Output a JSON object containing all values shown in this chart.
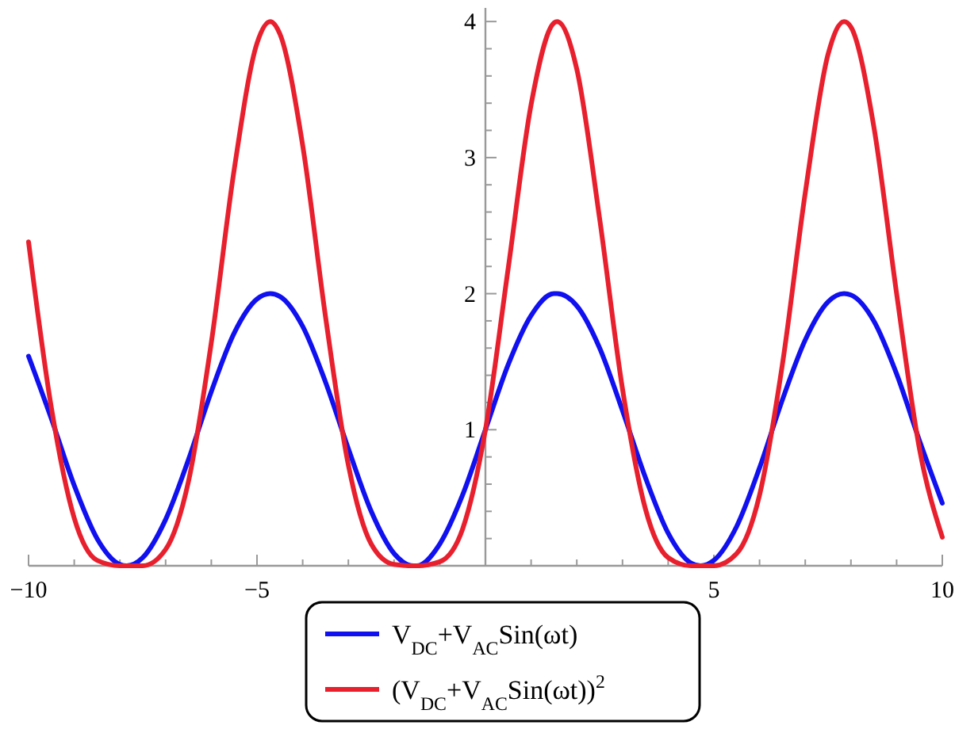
{
  "chart_data": {
    "type": "line",
    "xlim": [
      -10,
      10
    ],
    "ylim": [
      0,
      4.1
    ],
    "xticks": [
      -10,
      {
        "value": -9,
        "label": null
      },
      {
        "value": -8,
        "label": null
      },
      {
        "value": -7,
        "label": null
      },
      {
        "value": -6,
        "label": null
      },
      -5,
      {
        "value": -4,
        "label": null
      },
      {
        "value": -3,
        "label": null
      },
      {
        "value": -2,
        "label": null
      },
      {
        "value": -1,
        "label": null
      },
      {
        "value": 1,
        "label": null
      },
      {
        "value": 2,
        "label": null
      },
      {
        "value": 3,
        "label": null
      },
      {
        "value": 4,
        "label": null
      },
      5,
      {
        "value": 6,
        "label": null
      },
      {
        "value": 7,
        "label": null
      },
      {
        "value": 8,
        "label": null
      },
      {
        "value": 9,
        "label": null
      },
      10
    ],
    "yticks": [
      {
        "value": 0.2,
        "label": null
      },
      {
        "value": 0.4,
        "label": null
      },
      {
        "value": 0.6,
        "label": null
      },
      {
        "value": 0.8,
        "label": null
      },
      1,
      {
        "value": 1.2,
        "label": null
      },
      {
        "value": 1.4,
        "label": null
      },
      {
        "value": 1.6,
        "label": null
      },
      {
        "value": 1.8,
        "label": null
      },
      2,
      {
        "value": 2.2,
        "label": null
      },
      {
        "value": 2.4,
        "label": null
      },
      {
        "value": 2.6,
        "label": null
      },
      {
        "value": 2.8,
        "label": null
      },
      3,
      {
        "value": 3.2,
        "label": null
      },
      {
        "value": 3.4,
        "label": null
      },
      {
        "value": 3.6,
        "label": null
      },
      {
        "value": 3.8,
        "label": null
      },
      4
    ],
    "x": [
      -10,
      -9.5,
      -9,
      -8.5,
      -8,
      -7.85,
      -7.5,
      -7,
      -6.5,
      -6,
      -5.5,
      -5,
      -4.71,
      -4.5,
      -4,
      -3.5,
      -3,
      -2.5,
      -2,
      -1.57,
      -1.5,
      -1,
      -0.5,
      0,
      0.5,
      1,
      1.5,
      1.57,
      2,
      2.5,
      3,
      3.5,
      4,
      4.5,
      4.71,
      5,
      5.5,
      6,
      6.5,
      7,
      7.5,
      7.85,
      8,
      8.5,
      9,
      9.5,
      10
    ],
    "series": [
      {
        "name": "V$_{DC}$+V$_{AC}$Sin(ωt)",
        "color": "#1010f0",
        "values": [
          1.54,
          1.08,
          0.59,
          0.2,
          0.01,
          0,
          0.06,
          0.34,
          0.78,
          1.28,
          1.71,
          1.96,
          2,
          1.98,
          1.76,
          1.35,
          0.86,
          0.4,
          0.09,
          0,
          0,
          0.16,
          0.52,
          1,
          1.48,
          1.84,
          2,
          2,
          1.91,
          1.6,
          1.14,
          0.65,
          0.24,
          0.02,
          0,
          0.04,
          0.29,
          0.72,
          1.22,
          1.66,
          1.94,
          2,
          1.99,
          1.8,
          1.41,
          0.92,
          0.46
        ]
      },
      {
        "name": "(V$_{DC}$+V$_{AC}$Sin(ωt))$^{2}$",
        "color": "#e8202e",
        "values": [
          2.38,
          1.16,
          0.35,
          0.04,
          0,
          0,
          0,
          0.12,
          0.62,
          1.64,
          2.91,
          3.84,
          4,
          3.91,
          3.09,
          1.83,
          0.74,
          0.16,
          0.01,
          0,
          0,
          0.03,
          0.27,
          1,
          2.19,
          3.39,
          3.99,
          4,
          3.65,
          2.55,
          1.3,
          0.42,
          0.06,
          0,
          0,
          0,
          0.09,
          0.52,
          1.48,
          2.74,
          3.76,
          4,
          3.96,
          3.23,
          2,
          0.86,
          0.21
        ]
      }
    ],
    "legend": "bottom",
    "grid": false
  }
}
